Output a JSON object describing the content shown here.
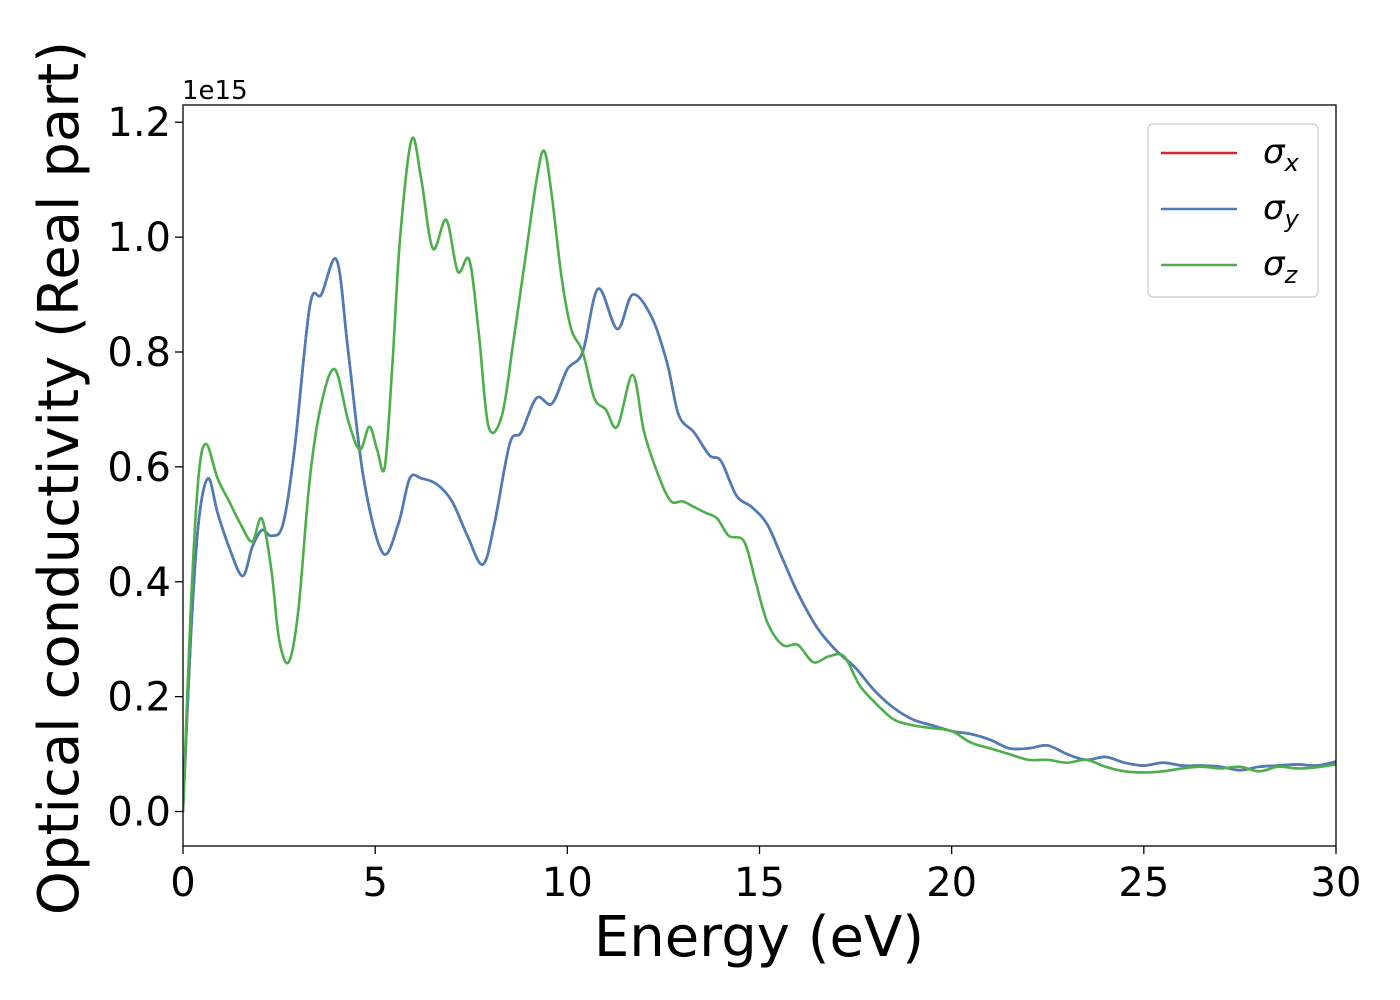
{
  "chart_data": {
    "type": "line",
    "title": "",
    "xlabel": "Energy (eV)",
    "ylabel": "Optical conductivity (Real part)",
    "y_offset_label": "1e15",
    "xlim": [
      0,
      30
    ],
    "ylim": [
      -0.06,
      1.23
    ],
    "x_ticks": [
      0,
      5,
      10,
      15,
      20,
      25,
      30
    ],
    "x_tick_labels": [
      "0",
      "5",
      "10",
      "15",
      "20",
      "25",
      "30"
    ],
    "y_ticks": [
      0.0,
      0.2,
      0.4,
      0.6,
      0.8,
      1.0,
      1.2
    ],
    "y_tick_labels": [
      "0.0",
      "0.2",
      "0.4",
      "0.6",
      "0.8",
      "1.0",
      "1.2"
    ],
    "grid": false,
    "legend_position": "top-right",
    "series": [
      {
        "name": "σx",
        "legend_symbol": "σ",
        "legend_subscript": "x",
        "color": "#d62728",
        "x": [
          0,
          0.2,
          0.4,
          0.65,
          0.9,
          1.2,
          1.55,
          1.8,
          2.05,
          2.3,
          2.6,
          2.9,
          3.3,
          3.6,
          4.0,
          4.3,
          4.7,
          5.2,
          5.6,
          5.9,
          6.2,
          6.6,
          7.0,
          7.4,
          7.8,
          8.1,
          8.5,
          8.8,
          9.2,
          9.6,
          10.0,
          10.4,
          10.8,
          11.3,
          11.7,
          12.2,
          12.6,
          12.9,
          13.3,
          13.7,
          14.0,
          14.4,
          14.8,
          15.2,
          15.6,
          16.0,
          16.5,
          17.0,
          17.5,
          18.0,
          18.5,
          19.0,
          19.5,
          20.0,
          20.5,
          21.0,
          21.5,
          22.0,
          22.5,
          23.0,
          23.5,
          24.0,
          24.5,
          25.0,
          25.5,
          26.0,
          26.5,
          27.0,
          27.5,
          28.0,
          28.5,
          29.0,
          29.5,
          30.0
        ],
        "values": [
          0.0,
          0.3,
          0.5,
          0.58,
          0.52,
          0.46,
          0.41,
          0.46,
          0.49,
          0.48,
          0.5,
          0.63,
          0.88,
          0.9,
          0.96,
          0.8,
          0.58,
          0.45,
          0.5,
          0.58,
          0.58,
          0.57,
          0.54,
          0.48,
          0.43,
          0.5,
          0.64,
          0.66,
          0.72,
          0.71,
          0.77,
          0.8,
          0.91,
          0.84,
          0.9,
          0.86,
          0.78,
          0.69,
          0.66,
          0.62,
          0.61,
          0.55,
          0.53,
          0.5,
          0.44,
          0.38,
          0.32,
          0.28,
          0.25,
          0.21,
          0.18,
          0.16,
          0.15,
          0.14,
          0.135,
          0.125,
          0.11,
          0.11,
          0.115,
          0.1,
          0.09,
          0.095,
          0.085,
          0.08,
          0.085,
          0.08,
          0.08,
          0.078,
          0.072,
          0.078,
          0.08,
          0.082,
          0.08,
          0.087
        ]
      },
      {
        "name": "σy",
        "legend_symbol": "σ",
        "legend_subscript": "y",
        "color": "#4a7eb8",
        "x": [
          0,
          0.2,
          0.4,
          0.65,
          0.9,
          1.2,
          1.55,
          1.8,
          2.05,
          2.3,
          2.6,
          2.9,
          3.3,
          3.6,
          4.0,
          4.3,
          4.7,
          5.2,
          5.6,
          5.9,
          6.2,
          6.6,
          7.0,
          7.4,
          7.8,
          8.1,
          8.5,
          8.8,
          9.2,
          9.6,
          10.0,
          10.4,
          10.8,
          11.3,
          11.7,
          12.2,
          12.6,
          12.9,
          13.3,
          13.7,
          14.0,
          14.4,
          14.8,
          15.2,
          15.6,
          16.0,
          16.5,
          17.0,
          17.5,
          18.0,
          18.5,
          19.0,
          19.5,
          20.0,
          20.5,
          21.0,
          21.5,
          22.0,
          22.5,
          23.0,
          23.5,
          24.0,
          24.5,
          25.0,
          25.5,
          26.0,
          26.5,
          27.0,
          27.5,
          28.0,
          28.5,
          29.0,
          29.5,
          30.0
        ],
        "values": [
          0.0,
          0.3,
          0.5,
          0.58,
          0.52,
          0.46,
          0.41,
          0.46,
          0.49,
          0.48,
          0.5,
          0.63,
          0.88,
          0.9,
          0.96,
          0.8,
          0.58,
          0.45,
          0.5,
          0.58,
          0.58,
          0.57,
          0.54,
          0.48,
          0.43,
          0.5,
          0.64,
          0.66,
          0.72,
          0.71,
          0.77,
          0.8,
          0.91,
          0.84,
          0.9,
          0.86,
          0.78,
          0.69,
          0.66,
          0.62,
          0.61,
          0.55,
          0.53,
          0.5,
          0.44,
          0.38,
          0.32,
          0.28,
          0.25,
          0.21,
          0.18,
          0.16,
          0.15,
          0.14,
          0.135,
          0.125,
          0.11,
          0.11,
          0.115,
          0.1,
          0.09,
          0.095,
          0.085,
          0.08,
          0.085,
          0.08,
          0.08,
          0.078,
          0.072,
          0.078,
          0.08,
          0.082,
          0.08,
          0.087
        ]
      },
      {
        "name": "σz",
        "legend_symbol": "σ",
        "legend_subscript": "z",
        "color": "#4daf4a",
        "x": [
          0,
          0.2,
          0.4,
          0.6,
          0.9,
          1.2,
          1.5,
          1.8,
          2.05,
          2.3,
          2.5,
          2.75,
          3.0,
          3.3,
          3.6,
          3.95,
          4.3,
          4.6,
          4.85,
          5.05,
          5.25,
          5.45,
          5.65,
          5.95,
          6.2,
          6.5,
          6.85,
          7.15,
          7.45,
          7.7,
          7.95,
          8.3,
          8.6,
          8.9,
          9.2,
          9.4,
          9.6,
          9.85,
          10.1,
          10.4,
          10.7,
          11.0,
          11.3,
          11.7,
          12.0,
          12.4,
          12.7,
          13.0,
          13.3,
          13.6,
          13.9,
          14.2,
          14.6,
          14.9,
          15.2,
          15.6,
          16.0,
          16.4,
          16.8,
          17.2,
          17.6,
          18.0,
          18.5,
          19.0,
          19.5,
          20.0,
          20.5,
          21.0,
          21.5,
          22.0,
          22.5,
          23.0,
          23.5,
          24.0,
          24.5,
          25.0,
          25.5,
          26.0,
          26.5,
          27.0,
          27.5,
          28.0,
          28.5,
          29.0,
          29.5,
          30.0
        ],
        "values": [
          0.0,
          0.35,
          0.58,
          0.64,
          0.58,
          0.54,
          0.5,
          0.47,
          0.51,
          0.42,
          0.3,
          0.26,
          0.35,
          0.58,
          0.71,
          0.77,
          0.68,
          0.63,
          0.67,
          0.63,
          0.6,
          0.78,
          1.0,
          1.17,
          1.1,
          0.98,
          1.03,
          0.94,
          0.96,
          0.83,
          0.67,
          0.69,
          0.82,
          0.96,
          1.1,
          1.15,
          1.07,
          0.93,
          0.84,
          0.8,
          0.72,
          0.7,
          0.67,
          0.76,
          0.66,
          0.58,
          0.54,
          0.54,
          0.53,
          0.52,
          0.51,
          0.48,
          0.47,
          0.4,
          0.33,
          0.29,
          0.29,
          0.26,
          0.27,
          0.27,
          0.22,
          0.19,
          0.16,
          0.15,
          0.145,
          0.14,
          0.12,
          0.11,
          0.1,
          0.09,
          0.09,
          0.085,
          0.09,
          0.078,
          0.07,
          0.068,
          0.07,
          0.075,
          0.078,
          0.075,
          0.078,
          0.07,
          0.078,
          0.075,
          0.077,
          0.082
        ]
      }
    ]
  }
}
